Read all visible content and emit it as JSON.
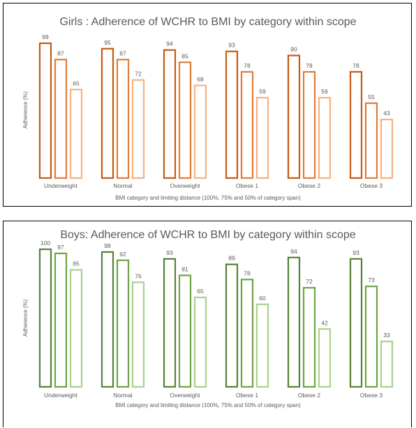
{
  "chart_data": [
    {
      "type": "bar",
      "title": "Girls : Adherence of WCHR to BMI by category within scope",
      "xlabel": "BMI category and limiting distance (100%, 75% and 50% of category span)",
      "ylabel": "Adherence (%)",
      "categories": [
        "Underweight",
        "Normal",
        "Overweight",
        "Obese 1",
        "Obese 2",
        "Obese 3"
      ],
      "ylim": [
        0,
        100
      ],
      "grid": false,
      "series": [
        {
          "values": [
            99,
            95,
            94,
            93,
            90,
            78
          ],
          "color": "#C55A11"
        },
        {
          "values": [
            87,
            87,
            85,
            78,
            78,
            55
          ],
          "color": "#E07B3A"
        },
        {
          "values": [
            65,
            72,
            68,
            59,
            59,
            43
          ],
          "color": "#F4B183"
        }
      ]
    },
    {
      "type": "bar",
      "title": "Boys: Adherence of WCHR to BMI by category within scope",
      "xlabel": "BMI category and limiting distance (100%, 75% and 50% of category span)",
      "ylabel": "Adherence (%)",
      "categories": [
        "Underweight",
        "Normal",
        "Overweight",
        "Obese 1",
        "Obese 2",
        "Obese 3"
      ],
      "ylim": [
        0,
        100
      ],
      "grid": false,
      "series": [
        {
          "values": [
            100,
            98,
            93,
            89,
            94,
            93
          ],
          "color": "#548235"
        },
        {
          "values": [
            97,
            92,
            81,
            78,
            72,
            73
          ],
          "color": "#6BA544"
        },
        {
          "values": [
            85,
            76,
            65,
            60,
            42,
            33
          ],
          "color": "#A9D18E"
        }
      ]
    }
  ]
}
